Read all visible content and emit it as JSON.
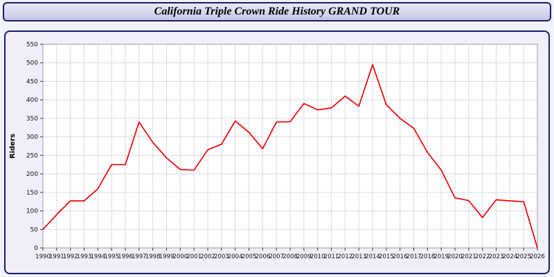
{
  "header": {
    "title": "California Triple Crown Ride History GRAND TOUR"
  },
  "colors": {
    "line": "#ee0000",
    "grid": "#d9d9e3",
    "plot_bg": "#ffffff",
    "panel_bg": "#efeff9",
    "border": "#1a1a70",
    "tick_text": "#111111"
  },
  "chart_data": {
    "type": "line",
    "title": "California Triple Crown Ride History GRAND TOUR",
    "xlabel": "",
    "ylabel": "Riders",
    "ylim": [
      0,
      550
    ],
    "ytick_step": 50,
    "grid": true,
    "legend_position": "none",
    "x": [
      1990,
      1991,
      1992,
      1993,
      1994,
      1995,
      1996,
      1997,
      1998,
      1999,
      2000,
      2001,
      2002,
      2003,
      2004,
      2005,
      2006,
      2007,
      2008,
      2009,
      2010,
      2011,
      2012,
      2013,
      2014,
      2015,
      2016,
      2017,
      2018,
      2019,
      2020,
      2021,
      2022,
      2023,
      2024,
      2025,
      2026
    ],
    "series": [
      {
        "name": "Riders",
        "values": [
          50,
          90,
          127,
          127,
          160,
          225,
          225,
          340,
          285,
          243,
          212,
          210,
          265,
          280,
          343,
          312,
          268,
          340,
          341,
          390,
          373,
          378,
          410,
          383,
          495,
          387,
          350,
          323,
          258,
          210,
          135,
          128,
          82,
          130,
          127,
          125,
          0
        ]
      }
    ]
  }
}
